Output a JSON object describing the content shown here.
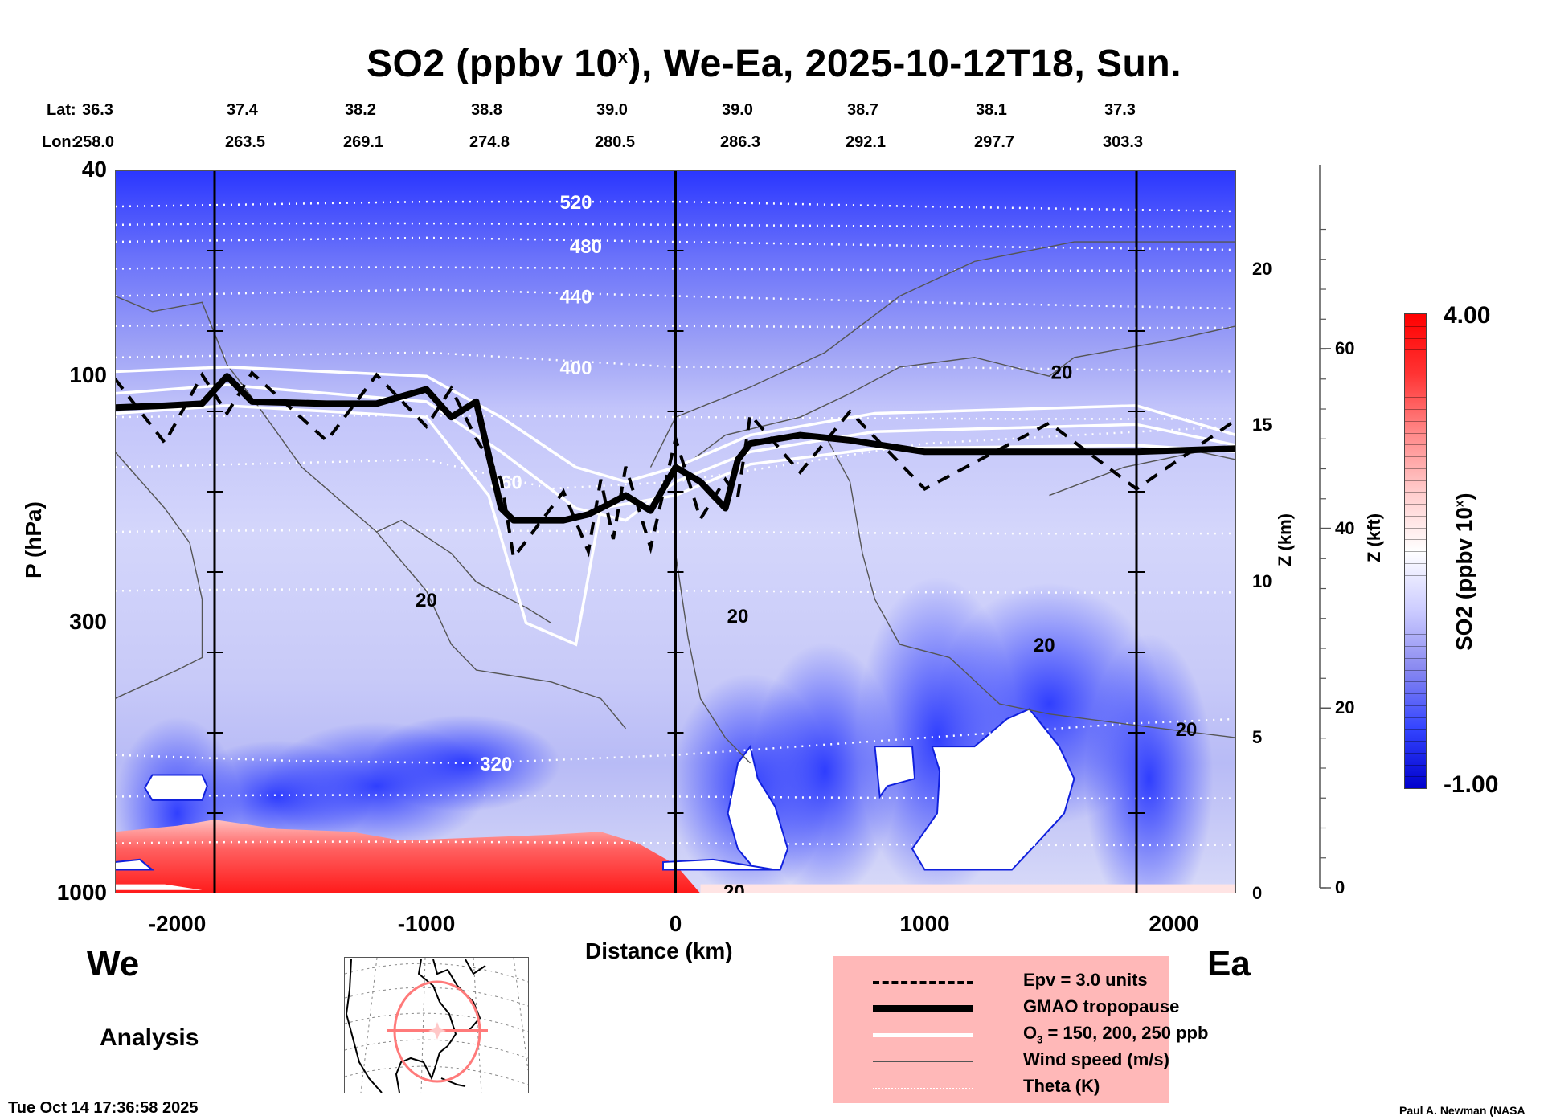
{
  "chart_data": {
    "type": "heatmap",
    "title": "SO2 (ppbv 10",
    "title_sup": "x",
    "title_suffix": "), We-Ea, 2025-10-12T18, Sun.",
    "xlabel": "Distance (km)",
    "ylabel": "P (hPa)",
    "y2label": "Z (km)",
    "y3label": "Z (kft)",
    "colorbar_label": "SO2 (ppbv 10",
    "colorbar_label_sup": "x",
    "colorbar_label_suffix": ")",
    "colorbar_range": [
      -1.0,
      4.0
    ],
    "colorbar_max_label": "4.00",
    "colorbar_min_label": "-1.00",
    "colormap": [
      "#0000cc",
      "#3344ff",
      "#8888f0",
      "#ccccff",
      "#ffffff",
      "#ffcccc",
      "#ff8888",
      "#ff3333",
      "#ff0000"
    ],
    "xlim": [
      -2250,
      2250
    ],
    "x_ticks": [
      -2000,
      -1000,
      0,
      1000,
      2000
    ],
    "x_tick_labels": [
      "-2000",
      "-1000",
      "0",
      "1000",
      "2000"
    ],
    "ylim_hpa": [
      1000,
      40
    ],
    "y_ticks_hpa": [
      40,
      100,
      300,
      1000
    ],
    "y_tick_labels": [
      "40",
      "100",
      "300",
      "1000"
    ],
    "y2_ticks_km": [
      0,
      5,
      10,
      15,
      20
    ],
    "y2_tick_labels": [
      "0",
      "5",
      "10",
      "15",
      "20"
    ],
    "y3_ticks_kft": [
      0,
      20,
      40,
      60
    ],
    "y3_tick_labels": [
      "0",
      "20",
      "40",
      "60"
    ],
    "vertical_markers_km": [
      -1850,
      0,
      1850
    ],
    "lat_label": "Lat:",
    "lon_label": "Lon:",
    "lat": [
      "36.3",
      "37.4",
      "38.2",
      "38.8",
      "39.0",
      "39.0",
      "38.7",
      "38.1",
      "37.3"
    ],
    "lon": [
      "258.0",
      "263.5",
      "269.1",
      "274.8",
      "280.5",
      "286.3",
      "292.1",
      "297.7",
      "303.3"
    ],
    "theta_contours": [
      {
        "label": "520",
        "x": -400,
        "hpa": 46,
        "points": [
          [
            -2250,
            47
          ],
          [
            -1000,
            46
          ],
          [
            0,
            46
          ],
          [
            1000,
            47
          ],
          [
            2250,
            48
          ]
        ]
      },
      {
        "label": "480",
        "x": -360,
        "hpa": 56,
        "points": [
          [
            -2250,
            55
          ],
          [
            -1000,
            54
          ],
          [
            0,
            55
          ],
          [
            1000,
            56
          ],
          [
            2250,
            57
          ]
        ]
      },
      {
        "label": "440",
        "x": -400,
        "hpa": 70,
        "points": [
          [
            -2250,
            70
          ],
          [
            -1000,
            68
          ],
          [
            0,
            70
          ],
          [
            1000,
            72
          ],
          [
            2250,
            74
          ]
        ]
      },
      {
        "label": "400",
        "x": -400,
        "hpa": 96,
        "points": [
          [
            -2250,
            92
          ],
          [
            -1000,
            90
          ],
          [
            0,
            96
          ],
          [
            1000,
            96
          ],
          [
            2250,
            98
          ]
        ]
      },
      {
        "label": "360",
        "x": -680,
        "hpa": 160,
        "points": [
          [
            -2250,
            150
          ],
          [
            -1000,
            145
          ],
          [
            -500,
            165
          ],
          [
            0,
            160
          ],
          [
            1000,
            135
          ],
          [
            2250,
            125
          ]
        ]
      },
      {
        "label": "320",
        "x": -720,
        "hpa": 560,
        "points": [
          [
            -2250,
            540
          ],
          [
            -1500,
            555
          ],
          [
            -800,
            560
          ],
          [
            0,
            540
          ],
          [
            1000,
            500
          ],
          [
            1800,
            470
          ],
          [
            2250,
            460
          ]
        ]
      }
    ],
    "extra_theta_levels_hpa": [
      51,
      62,
      80,
      120,
      200,
      260,
      650,
      800
    ],
    "wind_labels": [
      {
        "label": "20",
        "x": 1550,
        "hpa": 98
      },
      {
        "label": "20",
        "x": -1000,
        "hpa": 270
      },
      {
        "label": "20",
        "x": 250,
        "hpa": 290
      },
      {
        "label": "20",
        "x": 1480,
        "hpa": 330
      },
      {
        "label": "20",
        "x": 2050,
        "hpa": 480
      },
      {
        "label": "20",
        "x": 235,
        "hpa": 990
      }
    ],
    "tropopause_hpa": [
      [
        -2250,
        115
      ],
      [
        -2050,
        114
      ],
      [
        -1900,
        113
      ],
      [
        -1800,
        100
      ],
      [
        -1700,
        112
      ],
      [
        -1400,
        113
      ],
      [
        -1200,
        113
      ],
      [
        -1000,
        106
      ],
      [
        -900,
        120
      ],
      [
        -800,
        112
      ],
      [
        -700,
        180
      ],
      [
        -650,
        190
      ],
      [
        -450,
        190
      ],
      [
        -350,
        185
      ],
      [
        -300,
        180
      ],
      [
        -250,
        175
      ],
      [
        -200,
        170
      ],
      [
        -100,
        182
      ],
      [
        0,
        150
      ],
      [
        100,
        160
      ],
      [
        200,
        180
      ],
      [
        250,
        145
      ],
      [
        300,
        135
      ],
      [
        500,
        130
      ],
      [
        700,
        133
      ],
      [
        1000,
        140
      ],
      [
        1500,
        140
      ],
      [
        1850,
        140
      ],
      [
        2250,
        138
      ]
    ],
    "ozone_lines_hpa": [
      [
        [
          -2250,
          98
        ],
        [
          -1800,
          96
        ],
        [
          -1000,
          100
        ],
        [
          -700,
          120
        ],
        [
          -400,
          150
        ],
        [
          -200,
          160
        ],
        [
          0,
          150
        ],
        [
          300,
          130
        ],
        [
          800,
          118
        ],
        [
          1850,
          114
        ],
        [
          2250,
          130
        ]
      ],
      [
        [
          -2250,
          108
        ],
        [
          -1800,
          104
        ],
        [
          -1000,
          112
        ],
        [
          -700,
          140
        ],
        [
          -400,
          180
        ],
        [
          -200,
          190
        ],
        [
          0,
          160
        ],
        [
          300,
          140
        ],
        [
          800,
          128
        ],
        [
          1850,
          124
        ],
        [
          2250,
          136
        ]
      ],
      [
        [
          -2250,
          118
        ],
        [
          -1800,
          114
        ],
        [
          -1000,
          120
        ],
        [
          -750,
          170
        ],
        [
          -600,
          300
        ],
        [
          -400,
          330
        ],
        [
          -300,
          180
        ],
        [
          0,
          170
        ],
        [
          300,
          148
        ],
        [
          800,
          138
        ],
        [
          1850,
          136
        ],
        [
          2250,
          140
        ]
      ]
    ],
    "so2_field_notes": "Negative-to-near-zero (blue) aloft, positive (red) in boundary layer west of 0 km, saturated-low (white) patches mid/low troposphere east of 0 km",
    "legend_placement": "bottom-center"
  },
  "header": {
    "direction_left": "We",
    "direction_right": "Ea",
    "product": "Analysis"
  },
  "legend": {
    "items": [
      {
        "label": "Epv = 3.0 units",
        "style": "dashed"
      },
      {
        "label": "GMAO tropopause",
        "style": "thick"
      },
      {
        "label_pre": "O",
        "label_sub": "3",
        "label_post": " = 150, 200, 250 ppb",
        "style": "white"
      },
      {
        "label": "Wind speed (m/s)",
        "style": "thin"
      },
      {
        "label": "Theta (K)",
        "style": "dotted"
      }
    ],
    "background": "#ffb8b8"
  },
  "footer": {
    "timestamp": "Tue Oct 14 17:36:58 2025",
    "credit": "Paul A. Newman (NASA"
  }
}
